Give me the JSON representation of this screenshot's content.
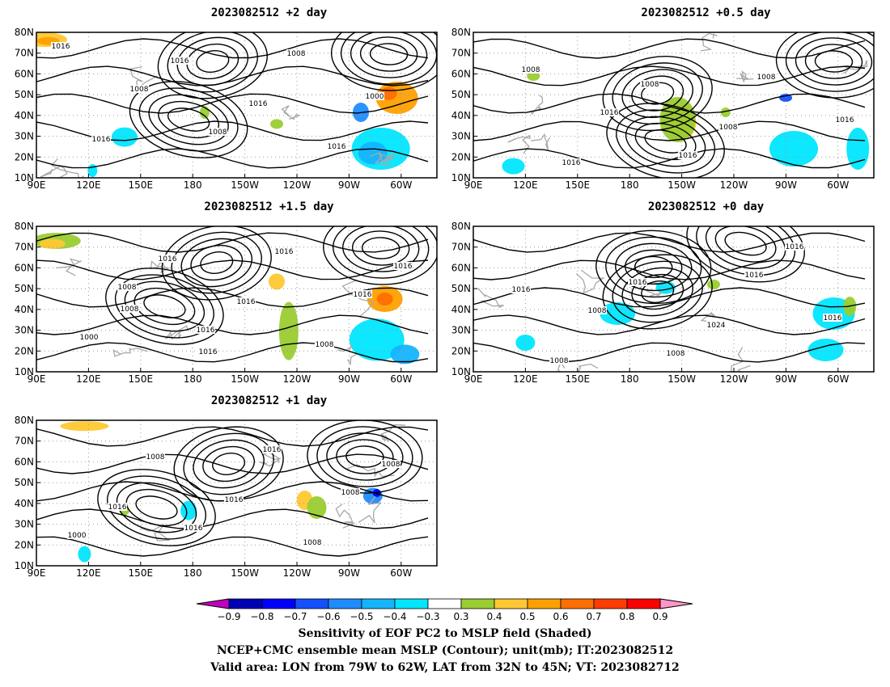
{
  "panels": [
    {
      "title": "2023082512 +2 day",
      "lon_ticks": [
        "90E",
        "120E",
        "150E",
        "180",
        "150W",
        "120W",
        "90W",
        "60W"
      ],
      "lat_ticks": [
        "80N",
        "70N",
        "60N",
        "50N",
        "40N",
        "30N",
        "20N",
        "10N"
      ],
      "contour_labels": [
        "1016",
        "1008",
        "1008",
        "1008",
        "1000",
        "1016",
        "1016",
        "1016",
        "1016"
      ]
    },
    {
      "title": "2023082512 +0.5 day",
      "lon_ticks": [
        "90E",
        "120E",
        "150E",
        "180",
        "150W",
        "120W",
        "90W",
        "60W"
      ],
      "lat_ticks": [
        "80N",
        "70N",
        "60N",
        "50N",
        "40N",
        "30N",
        "20N",
        "10N"
      ],
      "contour_labels": [
        "1008",
        "1016",
        "1016",
        "1008",
        "1016",
        "1016",
        "1008",
        "1008"
      ]
    },
    {
      "title": "2023082512 +1.5 day",
      "lon_ticks": [
        "90E",
        "120E",
        "150E",
        "180",
        "150W",
        "120W",
        "90W",
        "60W"
      ],
      "lat_ticks": [
        "80N",
        "70N",
        "60N",
        "50N",
        "40N",
        "30N",
        "20N",
        "10N"
      ],
      "contour_labels": [
        "1008",
        "1016",
        "1016",
        "1016",
        "1000",
        "1016",
        "1016",
        "1008",
        "1016",
        "1008",
        "1016"
      ]
    },
    {
      "title": "2023082512 +0 day",
      "lon_ticks": [
        "90E",
        "120E",
        "150E",
        "180",
        "150W",
        "120W",
        "90W",
        "60W"
      ],
      "lat_ticks": [
        "80N",
        "70N",
        "60N",
        "50N",
        "40N",
        "30N",
        "20N",
        "10N"
      ],
      "contour_labels": [
        "1008",
        "1008",
        "1016",
        "1016",
        "1008",
        "1016",
        "1024",
        "1016",
        "1016"
      ]
    },
    {
      "title": "2023082512 +1 day",
      "lon_ticks": [
        "90E",
        "120E",
        "150E",
        "180",
        "150W",
        "120W",
        "90W",
        "60W"
      ],
      "lat_ticks": [
        "80N",
        "70N",
        "60N",
        "50N",
        "40N",
        "30N",
        "20N",
        "10N"
      ],
      "contour_labels": [
        "1016",
        "1016",
        "1008",
        "1000",
        "1008",
        "1016",
        "1008",
        "1008",
        "1016"
      ]
    }
  ],
  "colorbar": {
    "labels": [
      "−0.9",
      "−0.8",
      "−0.7",
      "−0.6",
      "−0.5",
      "−0.4",
      "−0.3",
      "0.3",
      "0.4",
      "0.5",
      "0.6",
      "0.7",
      "0.8",
      "0.9"
    ],
    "colors": [
      "#c000c0",
      "#0000b4",
      "#0000ff",
      "#1450ff",
      "#1e8cff",
      "#14b4ff",
      "#00e6ff",
      "#ffffff",
      "#9acd32",
      "#ffc832",
      "#ffa000",
      "#ff6e00",
      "#ff3c00",
      "#ff0000",
      "#ff96c8"
    ]
  },
  "caption": [
    "Sensitivity of EOF PC2 to MSLP field (Shaded)",
    "NCEP+CMC ensemble mean MSLP (Contour); unit(mb); IT:2023082512",
    "Valid area: LON from 79W to 62W, LAT from 32N to 45N; VT: 2023082712"
  ]
}
